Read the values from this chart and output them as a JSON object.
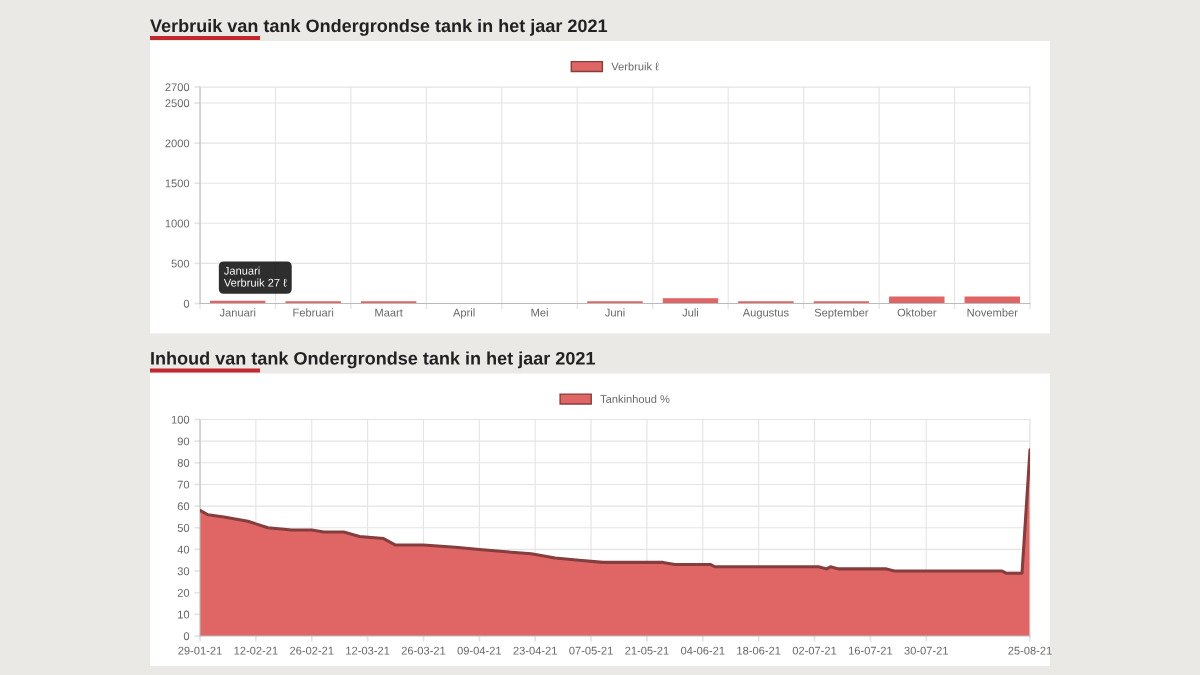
{
  "chart_data": [
    {
      "type": "bar",
      "title": "Verbruik van tank Ondergrondse tank in het jaar 2021",
      "categories": [
        "Januari",
        "Februari",
        "Maart",
        "April",
        "Mei",
        "Juni",
        "Juli",
        "Augustus",
        "September",
        "Oktober",
        "November"
      ],
      "series": [
        {
          "name": "Verbruik ℓ",
          "color": "#e06666",
          "values": [
            27,
            20,
            20,
            0,
            0,
            20,
            60,
            20,
            20,
            80,
            80
          ]
        }
      ],
      "ylim": [
        0,
        2700
      ],
      "yticks": [
        0,
        500,
        1000,
        1500,
        2000,
        2500,
        2700
      ],
      "grid": true,
      "legend": "top",
      "annotations": [
        {
          "text": "Januari\nVerbruik 27 ℓ",
          "x": "Januari",
          "y": 27
        }
      ]
    },
    {
      "type": "area",
      "title": "Inhoud van tank Ondergrondse tank in het jaar 2021",
      "x": [
        "2021-01-29",
        "2021-01-31",
        "2021-02-04",
        "2021-02-10",
        "2021-02-15",
        "2021-02-21",
        "2021-02-26",
        "2021-03-01",
        "2021-03-06",
        "2021-03-10",
        "2021-03-16",
        "2021-03-19",
        "2021-03-26",
        "2021-04-03",
        "2021-04-09",
        "2021-04-15",
        "2021-04-22",
        "2021-04-28",
        "2021-05-04",
        "2021-05-10",
        "2021-05-25",
        "2021-05-28",
        "2021-06-06",
        "2021-06-07",
        "2021-07-03",
        "2021-07-05",
        "2021-07-06",
        "2021-07-08",
        "2021-07-20",
        "2021-07-22",
        "2021-08-18",
        "2021-08-19",
        "2021-08-23",
        "2021-08-25"
      ],
      "series": [
        {
          "name": "Tankinhoud %",
          "color": "#e06666",
          "values": [
            58,
            56,
            55,
            53,
            50,
            49,
            49,
            48,
            48,
            46,
            45,
            42,
            42,
            41,
            40,
            39,
            38,
            36,
            35,
            34,
            34,
            33,
            33,
            32,
            32,
            31,
            32,
            31,
            31,
            30,
            30,
            29,
            29,
            86
          ]
        }
      ],
      "xlim": [
        "2021-01-29",
        "2021-08-25"
      ],
      "xticks": [
        {
          "value": "2021-01-29",
          "label": "29-01-21"
        },
        {
          "value": "2021-02-12",
          "label": "12-02-21"
        },
        {
          "value": "2021-02-26",
          "label": "26-02-21"
        },
        {
          "value": "2021-03-12",
          "label": "12-03-21"
        },
        {
          "value": "2021-03-26",
          "label": "26-03-21"
        },
        {
          "value": "2021-04-09",
          "label": "09-04-21"
        },
        {
          "value": "2021-04-23",
          "label": "23-04-21"
        },
        {
          "value": "2021-05-07",
          "label": "07-05-21"
        },
        {
          "value": "2021-05-21",
          "label": "21-05-21"
        },
        {
          "value": "2021-06-04",
          "label": "04-06-21"
        },
        {
          "value": "2021-06-18",
          "label": "18-06-21"
        },
        {
          "value": "2021-07-02",
          "label": "02-07-21"
        },
        {
          "value": "2021-07-16",
          "label": "16-07-21"
        },
        {
          "value": "2021-07-30",
          "label": "30-07-21"
        },
        {
          "value": "2021-08-25",
          "label": "25-08-21"
        }
      ],
      "ylim": [
        0,
        100
      ],
      "yticks": [
        0,
        10,
        20,
        30,
        40,
        50,
        60,
        70,
        80,
        90,
        100
      ],
      "grid": true,
      "legend": "top"
    }
  ]
}
